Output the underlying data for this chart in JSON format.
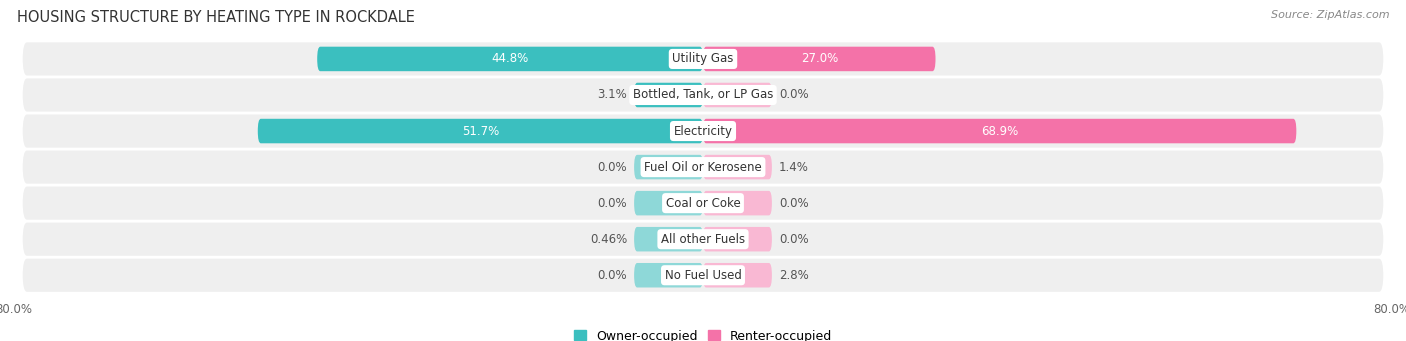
{
  "title": "HOUSING STRUCTURE BY HEATING TYPE IN ROCKDALE",
  "source": "Source: ZipAtlas.com",
  "categories": [
    "Utility Gas",
    "Bottled, Tank, or LP Gas",
    "Electricity",
    "Fuel Oil or Kerosene",
    "Coal or Coke",
    "All other Fuels",
    "No Fuel Used"
  ],
  "owner_values": [
    44.8,
    3.1,
    51.7,
    0.0,
    0.0,
    0.46,
    0.0
  ],
  "renter_values": [
    27.0,
    0.0,
    68.9,
    1.4,
    0.0,
    0.0,
    2.8
  ],
  "owner_color": "#3BBFBF",
  "renter_color": "#F472A8",
  "owner_color_light": "#8ED8D8",
  "renter_color_light": "#F9B8D3",
  "row_bg": "#EFEFEF",
  "axis_min": -80.0,
  "axis_max": 80.0,
  "owner_label": "Owner-occupied",
  "renter_label": "Renter-occupied",
  "label_fontsize": 8.5,
  "value_fontsize": 8.5,
  "title_fontsize": 10.5,
  "source_fontsize": 8,
  "min_bar_display": 3.0,
  "small_bar_width": 8.0
}
